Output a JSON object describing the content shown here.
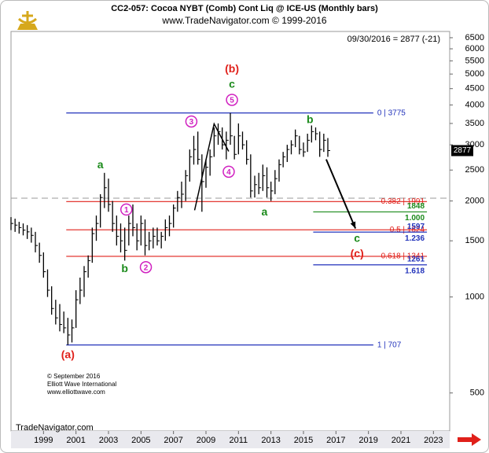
{
  "chart_data": {
    "type": "ohlc",
    "title": "CC2-057: Cocoa NYBT (Comb) Cont Liq @ ICE-US  (Monthly bars)",
    "subtitle": "www.TradeNavigator.com © 1999-2016",
    "last_label": "09/30/2016 = 2877 (-21)",
    "last_value": 2877,
    "log_scale": true,
    "color": "#000000",
    "xlim": [
      1997,
      2024
    ],
    "xticks": [
      1999,
      2001,
      2003,
      2005,
      2007,
      2009,
      2011,
      2013,
      2015,
      2017,
      2019,
      2021,
      2023
    ],
    "ylim": [
      380,
      6800
    ],
    "yticks": [
      6500,
      6000,
      5500,
      5000,
      4500,
      4000,
      3500,
      3000,
      2500,
      2000,
      1500,
      1000,
      500
    ],
    "x": [
      1997.0,
      1997.25,
      1997.5,
      1997.75,
      1998.0,
      1998.25,
      1998.5,
      1998.75,
      1999.0,
      1999.25,
      1999.5,
      1999.75,
      2000.0,
      2000.25,
      2000.5,
      2000.75,
      2001.0,
      2001.25,
      2001.5,
      2001.75,
      2002.0,
      2002.25,
      2002.5,
      2002.75,
      2003.0,
      2003.25,
      2003.5,
      2003.75,
      2004.0,
      2004.25,
      2004.5,
      2004.75,
      2005.0,
      2005.25,
      2005.5,
      2005.75,
      2006.0,
      2006.25,
      2006.5,
      2006.75,
      2007.0,
      2007.25,
      2007.5,
      2007.75,
      2008.0,
      2008.25,
      2008.5,
      2008.75,
      2009.0,
      2009.25,
      2009.5,
      2009.75,
      2010.0,
      2010.25,
      2010.5,
      2010.75,
      2011.0,
      2011.25,
      2011.5,
      2011.75,
      2012.0,
      2012.25,
      2012.5,
      2012.75,
      2013.0,
      2013.25,
      2013.5,
      2013.75,
      2014.0,
      2014.25,
      2014.5,
      2014.75,
      2015.0,
      2015.25,
      2015.5,
      2015.75,
      2016.0,
      2016.25,
      2016.5
    ],
    "high": [
      1780,
      1760,
      1720,
      1700,
      1680,
      1650,
      1600,
      1480,
      1380,
      1220,
      1080,
      980,
      950,
      900,
      860,
      850,
      1050,
      1150,
      1250,
      1350,
      1650,
      1800,
      2100,
      2450,
      2350,
      2000,
      1800,
      1700,
      1650,
      1800,
      1950,
      1700,
      1800,
      1750,
      1600,
      1650,
      1650,
      1600,
      1750,
      1800,
      1950,
      2150,
      2300,
      2500,
      2900,
      3200,
      3300,
      2800,
      2700,
      2900,
      3400,
      3500,
      3400,
      3300,
      3775,
      3200,
      3500,
      3300,
      3100,
      2800,
      2400,
      2450,
      2600,
      2550,
      2300,
      2500,
      2700,
      2850,
      3000,
      3100,
      3350,
      3200,
      3050,
      3250,
      3450,
      3400,
      3300,
      3250,
      3150
    ],
    "low": [
      1620,
      1600,
      1580,
      1560,
      1520,
      1480,
      1380,
      1280,
      1150,
      1000,
      880,
      820,
      780,
      770,
      707,
      720,
      800,
      950,
      1000,
      1150,
      1280,
      1500,
      1650,
      1900,
      1850,
      1600,
      1450,
      1380,
      1300,
      1450,
      1550,
      1400,
      1450,
      1350,
      1400,
      1420,
      1450,
      1420,
      1500,
      1550,
      1650,
      1850,
      1900,
      2000,
      2300,
      2600,
      2600,
      1850,
      2200,
      2400,
      2750,
      3000,
      2900,
      2700,
      3000,
      2700,
      2800,
      2900,
      2600,
      2050,
      2050,
      2100,
      2150,
      2050,
      2000,
      2100,
      2300,
      2550,
      2650,
      2800,
      2950,
      2800,
      2750,
      2850,
      3050,
      3100,
      2750,
      2850,
      2750
    ],
    "close": [
      1700,
      1680,
      1650,
      1620,
      1600,
      1560,
      1450,
      1350,
      1200,
      1050,
      920,
      860,
      820,
      800,
      760,
      800,
      980,
      1050,
      1200,
      1300,
      1580,
      1700,
      2050,
      2200,
      1950,
      1700,
      1550,
      1500,
      1400,
      1700,
      1650,
      1500,
      1700,
      1450,
      1500,
      1550,
      1500,
      1550,
      1650,
      1700,
      1900,
      2050,
      2100,
      2400,
      2750,
      2900,
      2700,
      2300,
      2550,
      2750,
      3200,
      3300,
      3000,
      3100,
      3200,
      2800,
      3200,
      3000,
      2700,
      2150,
      2250,
      2200,
      2400,
      2200,
      2150,
      2350,
      2600,
      2750,
      2900,
      3000,
      3200,
      2900,
      2850,
      3100,
      3300,
      3250,
      2900,
      3100,
      2877
    ],
    "levels": [
      {
        "label": "0 | 3775",
        "value": 3775,
        "color": "#2233bb",
        "x": [
          2000.4,
          2019.3
        ]
      },
      {
        "label": "0.382 | 1991",
        "value": 1991,
        "color": "#e0201a",
        "x": [
          2000.4,
          2022.6
        ]
      },
      {
        "label": "0.5 | 1624",
        "value": 1624,
        "color": "#e0201a",
        "x": [
          2000.4,
          2022.6
        ]
      },
      {
        "label": "0.618 | 1341",
        "value": 1341,
        "color": "#e0201a",
        "x": [
          2000.4,
          2022.6
        ]
      },
      {
        "label": "1 | 707",
        "value": 707,
        "color": "#2233bb",
        "x": [
          2000.4,
          2019.3
        ]
      }
    ],
    "targets": [
      {
        "value": 1848,
        "ratio": "1.000",
        "color": "#1a8a1a",
        "x": [
          2015.6,
          2022.6
        ]
      },
      {
        "value": 1597,
        "ratio": "1.236",
        "color": "#2233bb",
        "x": [
          2015.6,
          2022.6
        ]
      },
      {
        "value": 1261,
        "ratio": "1.618",
        "color": "#2233bb",
        "x": [
          2015.6,
          2022.6
        ]
      }
    ],
    "reference_line": 2040,
    "waves": [
      {
        "text": "(b)",
        "color": "#e0201a",
        "x": 2010.6,
        "y": 5200
      },
      {
        "text": "c",
        "color": "#1a8a1a",
        "x": 2010.6,
        "y": 4650
      },
      {
        "text": "5",
        "color": "#d020c0",
        "x": 2010.6,
        "y": 4150,
        "circled": true
      },
      {
        "text": "3",
        "color": "#d020c0",
        "x": 2008.1,
        "y": 3550,
        "circled": true
      },
      {
        "text": "4",
        "color": "#d020c0",
        "x": 2010.4,
        "y": 2470,
        "circled": true
      },
      {
        "text": "1",
        "color": "#d020c0",
        "x": 2004.1,
        "y": 1880,
        "circled": true
      },
      {
        "text": "2",
        "color": "#d020c0",
        "x": 2005.3,
        "y": 1240,
        "circled": true
      },
      {
        "text": "a",
        "color": "#1a8a1a",
        "x": 2002.5,
        "y": 2600
      },
      {
        "text": "b",
        "color": "#1a8a1a",
        "x": 2004.0,
        "y": 1230
      },
      {
        "text": "a",
        "color": "#1a8a1a",
        "x": 2012.6,
        "y": 1850
      },
      {
        "text": "b",
        "color": "#1a8a1a",
        "x": 2015.4,
        "y": 3600
      },
      {
        "text": "c",
        "color": "#1a8a1a",
        "x": 2018.3,
        "y": 1530
      },
      {
        "text": "(c)",
        "color": "#e0201a",
        "x": 2018.3,
        "y": 1370
      },
      {
        "text": "(a)",
        "color": "#e0201a",
        "x": 2000.5,
        "y": 660
      }
    ],
    "wave_lines": {
      "x": [
        2008.3,
        2009.5,
        2010.4
      ],
      "y": [
        1870,
        3490,
        2860
      ]
    },
    "projection": {
      "x": [
        2016.4,
        2018.2
      ],
      "y": [
        2700,
        1640
      ]
    },
    "credits": [
      "© September 2016",
      "Elliott Wave International",
      "www.elliottwave.com"
    ],
    "footer": "TradeNavigator.com"
  }
}
